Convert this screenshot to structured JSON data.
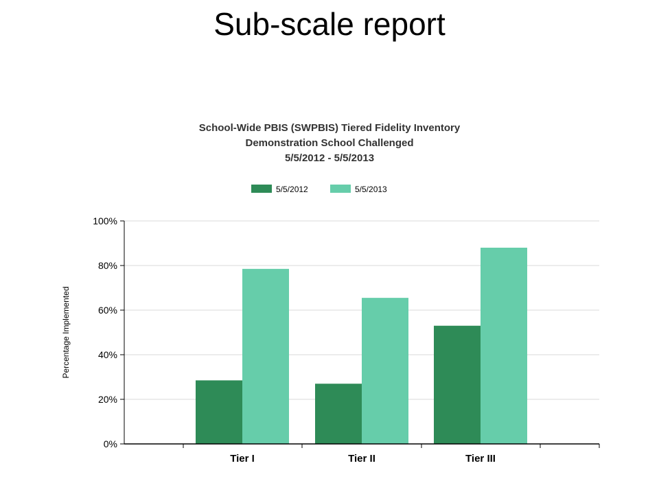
{
  "slide": {
    "title": "Sub-scale report"
  },
  "chart_data": {
    "type": "bar",
    "title": "School-Wide PBIS (SWPBIS) Tiered Fidelity Inventory",
    "subtitle": "Demonstration School Challenged",
    "date_range": "5/5/2012 - 5/5/2013",
    "categories": [
      "Tier I",
      "Tier II",
      "Tier III"
    ],
    "series": [
      {
        "name": "5/5/2012",
        "values": [
          28.5,
          27,
          53
        ],
        "color": "#2e8b57"
      },
      {
        "name": "5/5/2013",
        "values": [
          78.5,
          65.5,
          88
        ],
        "color": "#66cdaa"
      }
    ],
    "ylabel": "Percentage Implemented",
    "xlabel": "",
    "ylim": [
      0,
      100
    ],
    "yticks": [
      "0%",
      "20%",
      "40%",
      "60%",
      "80%",
      "100%"
    ],
    "grid": true,
    "legend_position": "top"
  }
}
